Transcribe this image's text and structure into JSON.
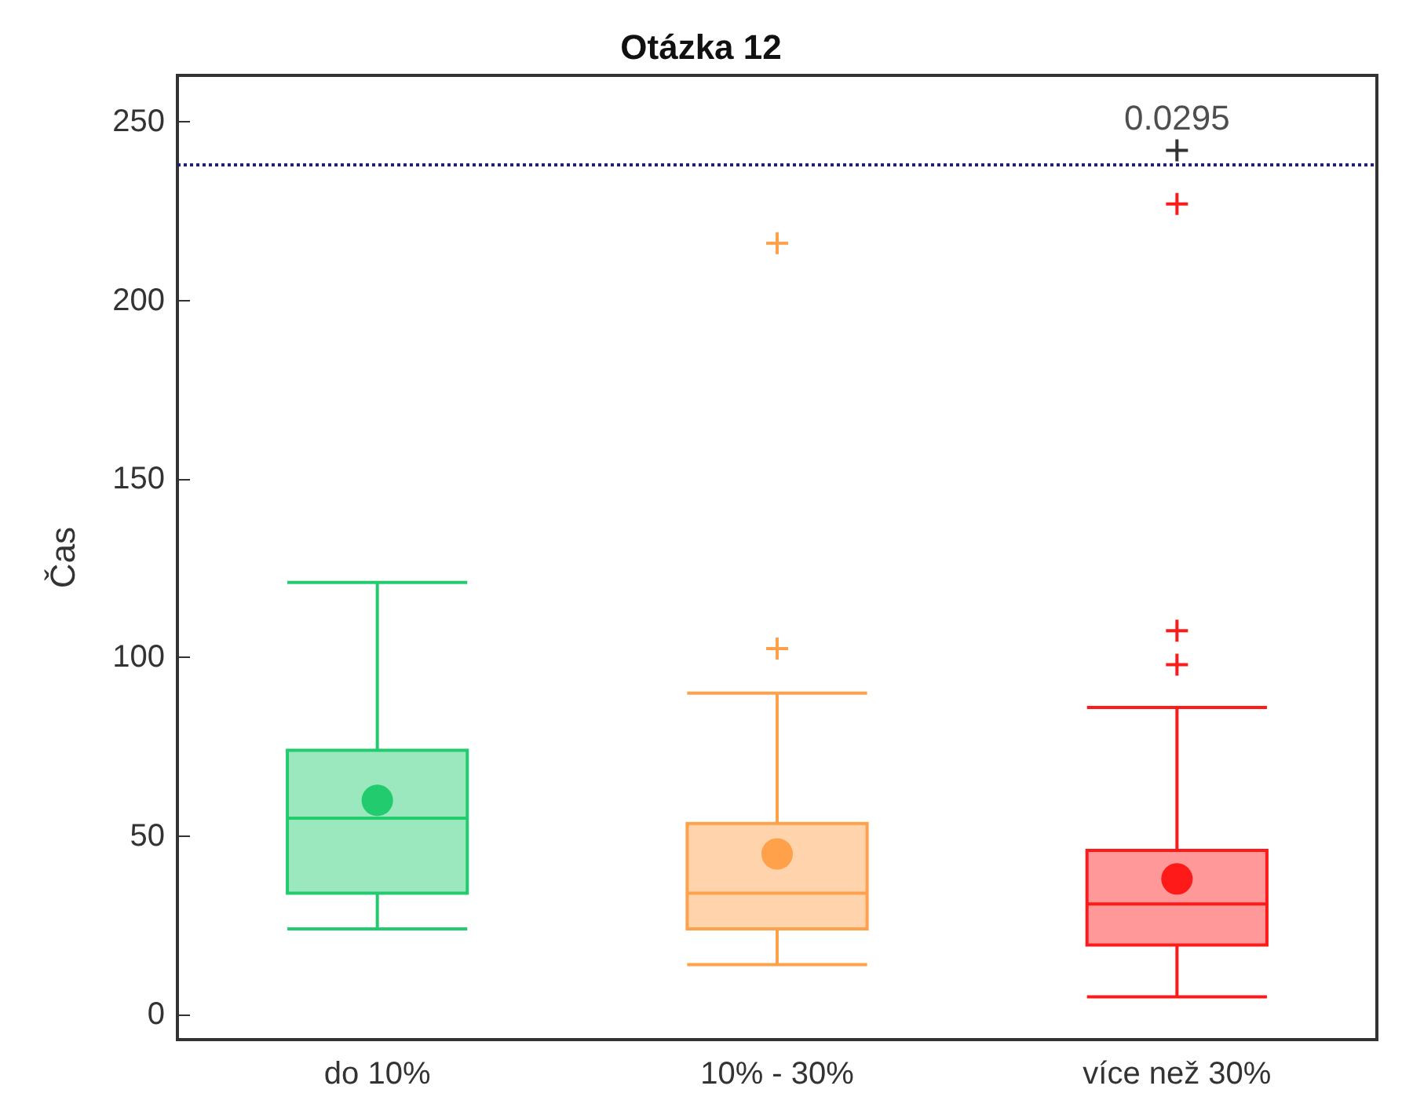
{
  "chart_data": {
    "type": "box",
    "title": "Otázka 12",
    "ylabel": "Čas",
    "categories": [
      "do 10%",
      "10% - 30%",
      "více než 30%"
    ],
    "colors": [
      "#22cc6e",
      "#ffa04a",
      "#ff1a1a"
    ],
    "boxes": [
      {
        "low": 24,
        "q1": 34,
        "median": 55,
        "q3": 74,
        "high": 121,
        "mean": 60
      },
      {
        "low": 14,
        "q1": 24,
        "median": 34,
        "q3": 53.5,
        "high": 90,
        "mean": 45,
        "outliers": [
          102.5,
          216
        ]
      },
      {
        "low": 5,
        "q1": 19.5,
        "median": 31,
        "q3": 46,
        "high": 86,
        "mean": 38,
        "outliers": [
          98,
          107.5,
          227
        ]
      }
    ],
    "series": [
      {
        "type": "scatter",
        "x": [
          "více než 30%"
        ],
        "values": [
          242
        ],
        "color": "#000000",
        "marker": "cross"
      }
    ],
    "annotations": [
      {
        "text": "0.0295",
        "x": "více než 30%",
        "y": 242
      }
    ],
    "ref_lines": [
      {
        "axis": "y",
        "value": 238,
        "color": "#1f1f7a",
        "line_style": "dotted"
      }
    ],
    "ylim": [
      -7,
      263
    ],
    "yticks": [
      0,
      50,
      100,
      150,
      200,
      250
    ]
  }
}
